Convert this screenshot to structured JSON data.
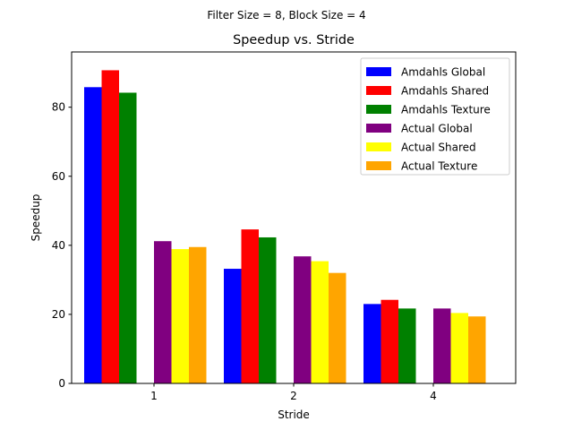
{
  "chart_data": {
    "type": "bar",
    "suptitle": "Filter Size = 8, Block Size = 4",
    "title": "Speedup vs. Stride",
    "xlabel": "Stride",
    "ylabel": "Speedup",
    "categories": [
      "1",
      "2",
      "4"
    ],
    "ylim": [
      0,
      96
    ],
    "yticks": [
      0,
      20,
      40,
      60,
      80
    ],
    "grid": false,
    "legend_position": "top-right",
    "series": [
      {
        "name": "Amdahls Global",
        "color": "#0000ff",
        "values": [
          85.8,
          33.2,
          23.0
        ]
      },
      {
        "name": "Amdahls Shared",
        "color": "#ff0000",
        "values": [
          90.7,
          44.6,
          24.2
        ]
      },
      {
        "name": "Amdahls Texture",
        "color": "#008000",
        "values": [
          84.2,
          42.3,
          21.7
        ]
      },
      {
        "name": "Actual Global",
        "color": "#800080",
        "values": [
          41.2,
          36.8,
          21.7
        ]
      },
      {
        "name": "Actual Shared",
        "color": "#ffff00",
        "values": [
          38.9,
          35.4,
          20.4
        ]
      },
      {
        "name": "Actual Texture",
        "color": "#ffa500",
        "values": [
          39.5,
          32.0,
          19.4
        ]
      }
    ]
  }
}
